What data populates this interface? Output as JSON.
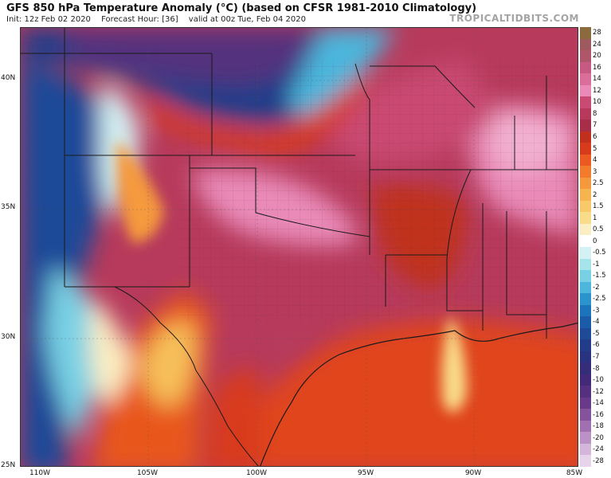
{
  "header": {
    "title": "GFS 850 hPa Temperature Anomaly (°C) (based on CFSR 1981-2010 Climatology)",
    "init": "Init: 12z Feb 02 2020",
    "forecast_hour": "Forecast Hour: [36]",
    "valid": "valid at 00z Tue, Feb 04 2020",
    "brand": "TROPICALTIDBITS.COM"
  },
  "map": {
    "lat_labels": [
      "40N",
      "35N",
      "30N",
      "25N"
    ],
    "lon_labels": [
      "110W",
      "105W",
      "100W",
      "95W",
      "90W",
      "85W"
    ],
    "lat_values": [
      40,
      35,
      30,
      25
    ],
    "lon_values": [
      -110,
      -105,
      -100,
      -95,
      -90,
      -85
    ]
  },
  "legend": {
    "labels": [
      "28",
      "24",
      "20",
      "16",
      "14",
      "12",
      "10",
      "8",
      "7",
      "6",
      "5",
      "4",
      "3",
      "2.5",
      "2",
      "1.5",
      "1",
      "0.5",
      "0",
      "-0.5",
      "-1",
      "-1.5",
      "-2",
      "-2.5",
      "-3",
      "-4",
      "-5",
      "-6",
      "-7",
      "-8",
      "-10",
      "-12",
      "-14",
      "-16",
      "-18",
      "-20",
      "-24",
      "-28"
    ],
    "colors": [
      "#8b6a3e",
      "#9e5a5e",
      "#b0566a",
      "#c75a82",
      "#da6d9a",
      "#e98ab8",
      "#c94a72",
      "#b73a5c",
      "#a62e48",
      "#c0301f",
      "#d83a1c",
      "#ea5a22",
      "#f27b2c",
      "#f59a3c",
      "#f6b450",
      "#f7c968",
      "#f9dc8a",
      "#fbeec2",
      "#ffffff",
      "#d4f2f4",
      "#a6e4ec",
      "#78d0e4",
      "#4cb6dc",
      "#2c94cc",
      "#1c74bc",
      "#1b5ca8",
      "#1f4a98",
      "#233c8a",
      "#2a3380",
      "#352d78",
      "#432a78",
      "#54307e",
      "#6a3a8a",
      "#85529c",
      "#a070b0",
      "#bb92c6",
      "#d4b6da",
      "#e8d4ea"
    ]
  },
  "colors": {
    "land_border": "#1a1a1a",
    "county_line": "#8a8a8a"
  }
}
